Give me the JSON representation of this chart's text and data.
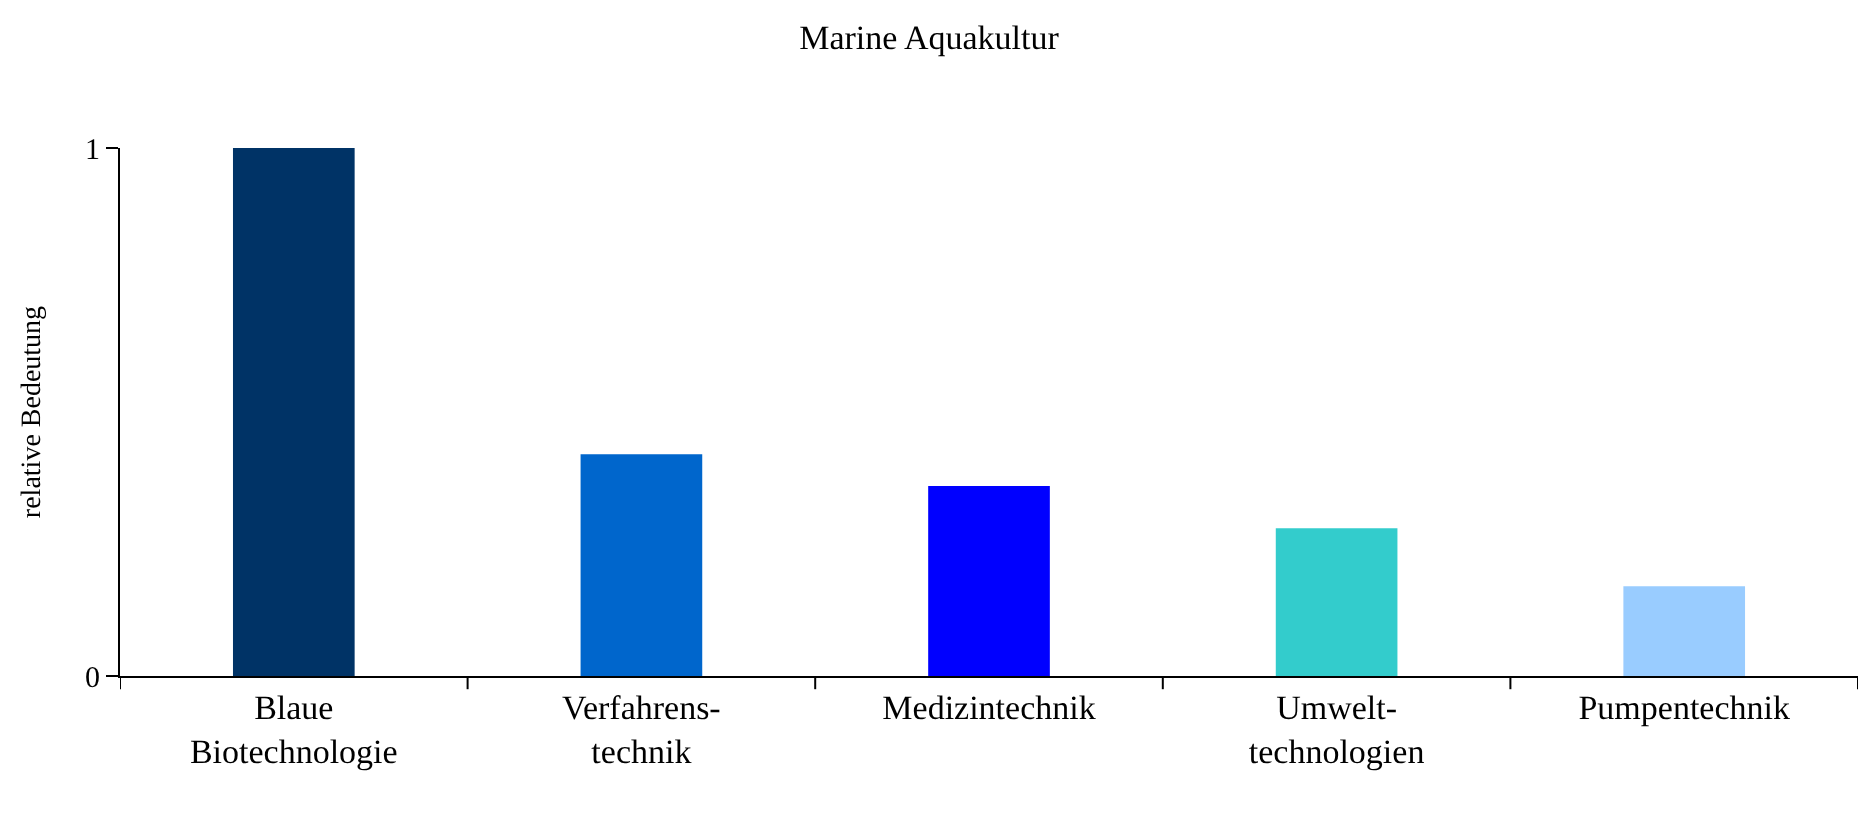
{
  "chart_data": {
    "type": "bar",
    "title": "Marine Aquakultur",
    "ylabel": "relative Bedeutung",
    "categories": [
      "Blaue\nBiotechnologie",
      "Verfahrens-\ntechnik",
      "Medizintechnik",
      "Umwelt-\ntechnologien",
      "Pumpentechnik"
    ],
    "values": [
      1,
      0.42,
      0.36,
      0.28,
      0.17
    ],
    "colors": [
      "#003366",
      "#0066cc",
      "#0000ff",
      "#33cccc",
      "#99ccff"
    ],
    "ylim": [
      0,
      1
    ],
    "yticks": [
      0,
      1
    ]
  }
}
